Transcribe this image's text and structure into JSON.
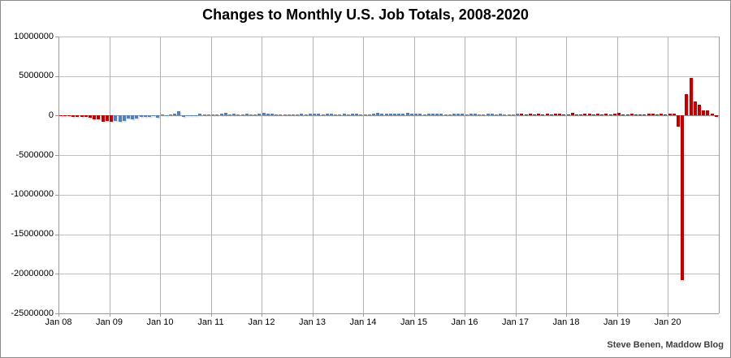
{
  "page": {
    "attribution": "Steve Benen, Maddow Blog"
  },
  "chart_data": {
    "type": "bar",
    "title": "Changes to Monthly U.S. Job Totals, 2008-2020",
    "xlabel": "",
    "ylabel": "",
    "ylim": [
      -25000000,
      10000000
    ],
    "grid": true,
    "x_start": "Jan 2008",
    "x_frequency": "monthly",
    "x_tick_labels": [
      "Jan 08",
      "Jan 09",
      "Jan 10",
      "Jan 11",
      "Jan 12",
      "Jan 13",
      "Jan 14",
      "Jan 15",
      "Jan 16",
      "Jan 17",
      "Jan 18",
      "Jan 19",
      "Jan 20"
    ],
    "y_tick_labels": [
      "10000000",
      "5000000",
      "0",
      "-5000000",
      "-10000000",
      "-15000000",
      "-20000000",
      "-25000000"
    ],
    "y_tick_values": [
      10000000,
      5000000,
      0,
      -5000000,
      -10000000,
      -15000000,
      -20000000,
      -25000000
    ],
    "bar_colors": {
      "red": "#C00000",
      "blue": "#4F81BD"
    },
    "color_segments": [
      {
        "from_index": 0,
        "to_index": 12,
        "color": "#C00000"
      },
      {
        "from_index": 13,
        "to_index": 108,
        "color": "#4F81BD"
      },
      {
        "from_index": 109,
        "to_index": 155,
        "color": "#C00000"
      }
    ],
    "values": [
      -100000,
      -100000,
      -100000,
      -200000,
      -200000,
      -200000,
      -200000,
      -300000,
      -450000,
      -500000,
      -800000,
      -700000,
      -800000,
      -700000,
      -800000,
      -700000,
      -350000,
      -500000,
      -350000,
      -200000,
      -200000,
      -200000,
      -50000,
      -300000,
      20000,
      -50000,
      150000,
      250000,
      520000,
      -130000,
      -70000,
      -40000,
      -50000,
      250000,
      140000,
      70000,
      40000,
      190000,
      220000,
      330000,
      100000,
      220000,
      110000,
      120000,
      220000,
      180000,
      140000,
      200000,
      340000,
      230000,
      240000,
      100000,
      110000,
      90000,
      160000,
      150000,
      160000,
      230000,
      150000,
      240000,
      200000,
      270000,
      140000,
      200000,
      220000,
      170000,
      130000,
      270000,
      190000,
      230000,
      270000,
      80000,
      170000,
      170000,
      230000,
      310000,
      230000,
      280000,
      250000,
      210000,
      270000,
      240000,
      330000,
      260000,
      200000,
      260000,
      90000,
      250000,
      280000,
      230000,
      250000,
      150000,
      120000,
      300000,
      280000,
      270000,
      130000,
      240000,
      220000,
      150000,
      40000,
      290000,
      250000,
      180000,
      250000,
      130000,
      160000,
      190000,
      260000,
      200000,
      80000,
      210000,
      140000,
      240000,
      190000,
      220000,
      10000,
      270000,
      220000,
      170000,
      170000,
      330000,
      180000,
      190000,
      270000,
      230000,
      170000,
      280000,
      110000,
      280000,
      150000,
      230000,
      310000,
      10000,
      150000,
      210000,
      80000,
      180000,
      160000,
      200000,
      210000,
      190000,
      260000,
      180000,
      210000,
      250000,
      -1400000,
      -20800000,
      2700000,
      4800000,
      1760000,
      1370000,
      660000,
      640000,
      250000,
      -140000
    ]
  }
}
